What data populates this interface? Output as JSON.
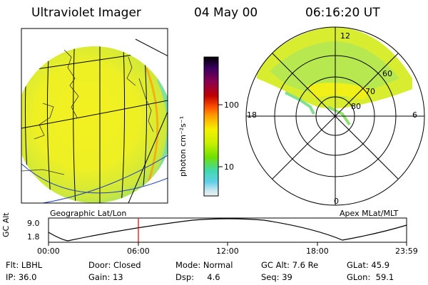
{
  "header": {
    "instrument": "Ultraviolet Imager",
    "date": "04 May 00",
    "time": "06:16:20 UT"
  },
  "colorbar": {
    "unit_label": "photon cm⁻²s⁻¹",
    "ticks": [
      "100",
      "10"
    ],
    "scale": "log",
    "colors": [
      "#000000",
      "#3a0060",
      "#8a0050",
      "#c00000",
      "#ff5000",
      "#ff9a00",
      "#f6f000",
      "#c8f000",
      "#70e000",
      "#40d8b0",
      "#60d0e8",
      "#c8e8f0",
      "#f0f0f0"
    ]
  },
  "left_panel": {
    "caption": "Geographic Lat/Lon"
  },
  "right_panel": {
    "caption": "Apex MLat/MLT",
    "mlt_labels": {
      "top": "12",
      "left": "18",
      "right": "6",
      "bottom": "0"
    },
    "lat_labels": [
      "60",
      "70",
      "80"
    ]
  },
  "altitude_plot": {
    "ylabel": "GC Alt",
    "yticks": [
      "9.0",
      "1.8"
    ],
    "xticks": [
      "00:00",
      "06:00",
      "12:00",
      "18:00",
      "23:59"
    ],
    "marker_time": "06:16:20"
  },
  "footer": {
    "row1": {
      "filter": "Flt: LBHL",
      "door": "Door: Closed",
      "mode": "Mode: Normal",
      "gc_alt": "GC Alt: 7.6 Re",
      "glat": "GLat:  45.9"
    },
    "row2": {
      "ip": "IP: 36.0",
      "gain": "Gain: 13",
      "dsp": "Dsp:     4.6",
      "seq": "Seq: 39",
      "glon": "GLon:  59.1"
    }
  }
}
